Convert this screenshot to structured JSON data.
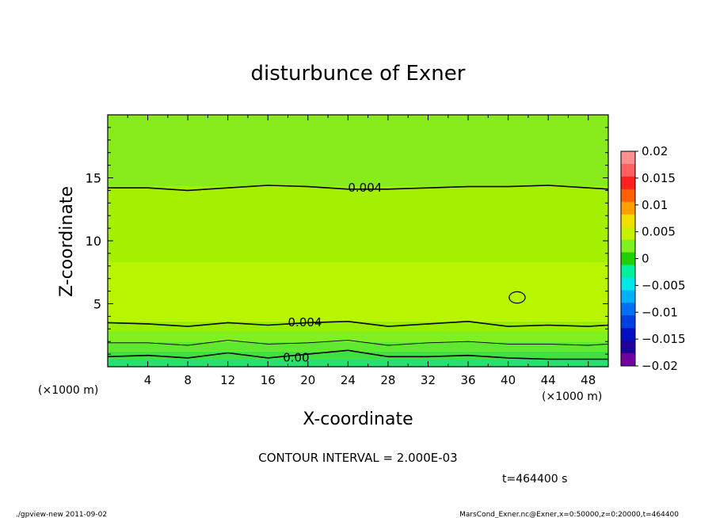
{
  "chart_data": {
    "type": "contour",
    "title": "disturbunce of Exner",
    "xlabel": "X-coordinate",
    "ylabel": "Z-coordinate",
    "x_unit": "(×1000 m)",
    "y_unit": "(×1000 m)",
    "xlim": [
      0,
      50
    ],
    "ylim": [
      0,
      20
    ],
    "x_ticks": [
      4,
      8,
      12,
      16,
      20,
      24,
      28,
      32,
      36,
      40,
      44,
      48
    ],
    "y_ticks": [
      5,
      10,
      15
    ],
    "colorbar": {
      "min": -0.02,
      "max": 0.02,
      "labels": [
        "0.02",
        "0.015",
        "0.01",
        "0.005",
        "0",
        "−0.005",
        "−0.01",
        "−0.015",
        "−0.02"
      ],
      "colors": [
        "#ff9090",
        "#ff6060",
        "#ff2020",
        "#ff6000",
        "#ffa000",
        "#f0e000",
        "#c8f000",
        "#80f020",
        "#20d000",
        "#00f0a0",
        "#00e8e8",
        "#00b0f8",
        "#0070f0",
        "#0040e0",
        "#0010c0",
        "#20009a",
        "#7000a0"
      ]
    },
    "bands": [
      {
        "z": [
          0.0,
          0.6
        ],
        "value": 0.0015,
        "color": "#28e070"
      },
      {
        "z": [
          0.6,
          1.2
        ],
        "value": 0.002,
        "color": "#40e040"
      },
      {
        "z": [
          1.2,
          2.0
        ],
        "value": 0.0025,
        "color": "#60e830"
      },
      {
        "z": [
          2.0,
          2.8
        ],
        "value": 0.003,
        "color": "#80f020"
      },
      {
        "z": [
          2.8,
          3.6
        ],
        "value": 0.0035,
        "color": "#98f000"
      },
      {
        "z": [
          3.6,
          8.3
        ],
        "value": 0.0045,
        "color": "#b8f500"
      },
      {
        "z": [
          8.3,
          14.3
        ],
        "value": 0.0042,
        "color": "#a4f000"
      },
      {
        "z": [
          14.3,
          20.0
        ],
        "value": 0.0038,
        "color": "#88ec1c"
      }
    ],
    "contours": [
      {
        "level": "0.004",
        "label": "0.004",
        "label_x": 24,
        "label_z": 14.1,
        "x": [
          0,
          4,
          8,
          12,
          16,
          20,
          24,
          28,
          32,
          36,
          40,
          44,
          48,
          50
        ],
        "z": [
          14.2,
          14.2,
          14.0,
          14.2,
          14.4,
          14.3,
          14.1,
          14.1,
          14.2,
          14.3,
          14.3,
          14.4,
          14.2,
          14.1
        ]
      },
      {
        "level": "0.004",
        "label": "0.004",
        "label_x": 18,
        "label_z": 3.4,
        "x": [
          0,
          4,
          8,
          12,
          16,
          20,
          24,
          28,
          32,
          36,
          40,
          44,
          48,
          50
        ],
        "z": [
          3.5,
          3.4,
          3.2,
          3.5,
          3.3,
          3.5,
          3.6,
          3.2,
          3.4,
          3.6,
          3.2,
          3.3,
          3.2,
          3.3
        ]
      },
      {
        "level": "0.002",
        "label": "",
        "label_x": 0,
        "label_z": 0,
        "x": [
          0,
          4,
          8,
          12,
          16,
          20,
          24,
          28,
          32,
          36,
          40,
          44,
          48,
          50
        ],
        "z": [
          1.9,
          1.9,
          1.7,
          2.1,
          1.8,
          1.9,
          2.1,
          1.7,
          1.9,
          2.0,
          1.8,
          1.8,
          1.7,
          1.8
        ]
      },
      {
        "level": "0.00",
        "label": "0.00",
        "label_x": 17.5,
        "label_z": 0.6,
        "x": [
          0,
          4,
          8,
          12,
          16,
          20,
          24,
          28,
          32,
          36,
          40,
          44,
          48,
          50
        ],
        "z": [
          0.8,
          0.9,
          0.7,
          1.1,
          0.7,
          1.0,
          1.3,
          0.8,
          0.8,
          0.9,
          0.7,
          0.6,
          0.6,
          0.6
        ]
      }
    ],
    "closed_contour": {
      "x": 40.9,
      "z": 5.5,
      "rx": 0.8,
      "rz": 0.45,
      "color": "#000000"
    },
    "annotations": {
      "contour_interval": "CONTOUR INTERVAL = 2.000E-03",
      "time": "t=464400 s"
    }
  },
  "footer": {
    "left": "./gpview-new  2011-09-02",
    "right": "MarsCond_Exner.nc@Exner,x=0:50000,z=0:20000,t=464400"
  }
}
